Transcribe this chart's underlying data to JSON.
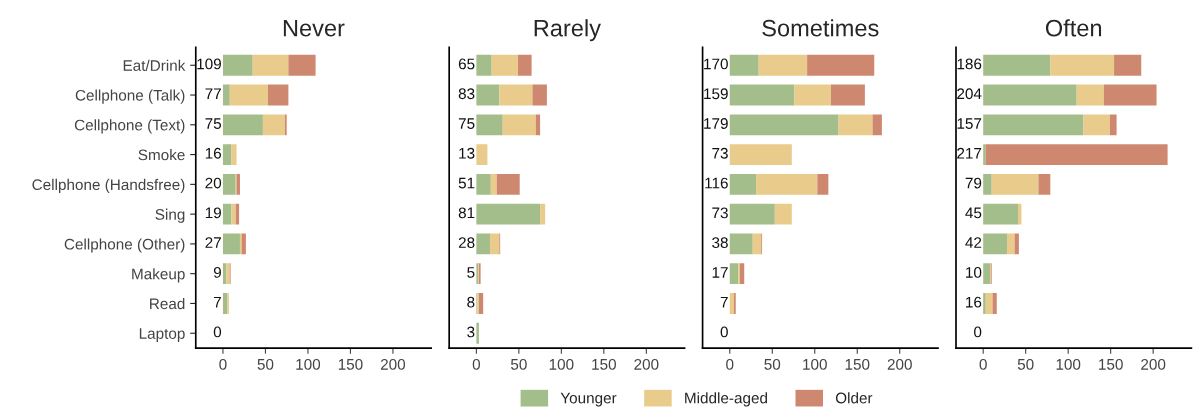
{
  "chart_data": [
    {
      "type": "bar",
      "orientation": "horizontal",
      "stacked": true,
      "title": "Never",
      "categories": [
        "Eat/Drink",
        "Cellphone (Talk)",
        "Cellphone (Text)",
        "Smoke",
        "Cellphone (Handsfree)",
        "Sing",
        "Cellphone (Other)",
        "Makeup",
        "Read",
        "Laptop"
      ],
      "series": [
        {
          "name": "Younger",
          "color": "#a3bd8b",
          "values": [
            35,
            8,
            47,
            10,
            15,
            10,
            20,
            4,
            5,
            0
          ]
        },
        {
          "name": "Middle-aged",
          "color": "#e9cb8b",
          "values": [
            42,
            45,
            26,
            6,
            1,
            5,
            2,
            4,
            2,
            0
          ]
        },
        {
          "name": "Older",
          "color": "#cf8870",
          "values": [
            32,
            24,
            2,
            0,
            4,
            4,
            5,
            1,
            0,
            0
          ]
        }
      ],
      "totals": [
        "109",
        "77",
        "75",
        "16",
        "20",
        "19",
        "27",
        "9",
        "7",
        "0"
      ],
      "xlim": [
        -32,
        245
      ],
      "xticks": [
        0,
        50,
        100,
        150,
        200
      ],
      "grid": false,
      "legend": "bottom"
    },
    {
      "type": "bar",
      "orientation": "horizontal",
      "stacked": true,
      "title": "Rarely",
      "categories": [
        null,
        null,
        null,
        null,
        null,
        null,
        null,
        null,
        null,
        null
      ],
      "series": [
        {
          "color": "#a3bd8b",
          "values": [
            18,
            27,
            31,
            0,
            17,
            75,
            16,
            2,
            1,
            3
          ]
        },
        {
          "color": "#e9cb8b",
          "values": [
            31,
            39,
            39,
            13,
            7,
            6,
            11,
            1,
            2,
            0
          ]
        },
        {
          "color": "#cf8870",
          "values": [
            16,
            17,
            5,
            0,
            27,
            0,
            1,
            2,
            5,
            0
          ]
        }
      ],
      "totals": [
        "65",
        "83",
        "75",
        "13",
        "51",
        "81",
        "28",
        "5",
        "8",
        "3"
      ],
      "xlim": [
        -32,
        245
      ],
      "xticks": [
        0,
        50,
        100,
        150,
        200
      ],
      "tick_labels": "x",
      "grid": false
    },
    {
      "type": "bar",
      "orientation": "horizontal",
      "stacked": true,
      "title": "Sometimes",
      "categories": [
        null,
        null,
        null,
        null,
        null,
        null,
        null,
        null,
        null,
        null
      ],
      "series": [
        {
          "color": "#a3bd8b",
          "values": [
            34,
            76,
            128,
            0,
            31,
            53,
            27,
            10,
            0,
            0
          ]
        },
        {
          "color": "#e9cb8b",
          "values": [
            57,
            43,
            40,
            73,
            72,
            20,
            10,
            2,
            5,
            0
          ]
        },
        {
          "color": "#cf8870",
          "values": [
            79,
            40,
            11,
            0,
            13,
            0,
            1,
            5,
            2,
            0
          ]
        }
      ],
      "totals": [
        "170",
        "159",
        "179",
        "73",
        "116",
        "73",
        "38",
        "17",
        "7",
        "0"
      ],
      "xlim": [
        -32,
        245
      ],
      "xticks": [
        0,
        50,
        100,
        150,
        200
      ],
      "tick_labels": "x",
      "grid": false
    },
    {
      "type": "bar",
      "orientation": "horizontal",
      "stacked": true,
      "title": "Often",
      "categories": [
        null,
        null,
        null,
        null,
        null,
        null,
        null,
        null,
        null,
        null
      ],
      "series": [
        {
          "color": "#a3bd8b",
          "values": [
            79,
            110,
            118,
            3,
            10,
            41,
            28,
            8,
            3,
            0
          ]
        },
        {
          "color": "#e9cb8b",
          "values": [
            75,
            32,
            31,
            0,
            55,
            4,
            9,
            1,
            8,
            0
          ]
        },
        {
          "color": "#cf8870",
          "values": [
            32,
            62,
            8,
            214,
            14,
            0,
            5,
            1,
            5,
            0
          ]
        }
      ],
      "totals": [
        "186",
        "204",
        "157",
        "217",
        "79",
        "45",
        "42",
        "10",
        "16",
        "0"
      ],
      "xlim": [
        -32,
        245
      ],
      "xticks": [
        0,
        50,
        100,
        150,
        200
      ],
      "tick_labels": "x",
      "grid": false
    }
  ]
}
